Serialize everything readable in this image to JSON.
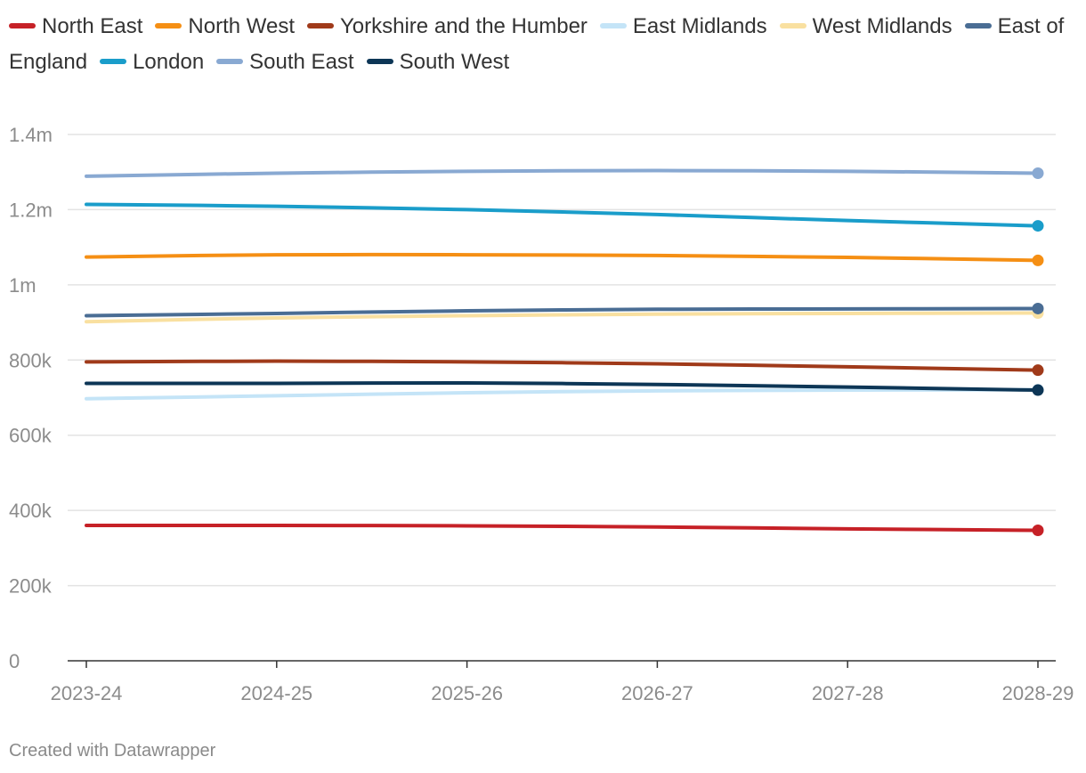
{
  "chart_data": {
    "type": "line",
    "title": "",
    "xlabel": "",
    "ylabel": "",
    "categories": [
      "2023-24",
      "2024-25",
      "2025-26",
      "2026-27",
      "2027-28",
      "2028-29"
    ],
    "ylim": [
      0,
      1400000
    ],
    "yticks": [
      0,
      200000,
      400000,
      600000,
      800000,
      1000000,
      1200000,
      1400000
    ],
    "ytick_labels": [
      "0",
      "200k",
      "400k",
      "600k",
      "800k",
      "1m",
      "1.2m",
      "1.4m"
    ],
    "grid": true,
    "legend_position": "top",
    "series": [
      {
        "name": "North East",
        "color": "#c62127",
        "values": [
          360000,
          360000,
          359000,
          356000,
          351000,
          347000
        ]
      },
      {
        "name": "North West",
        "color": "#f58f14",
        "values": [
          1074000,
          1080000,
          1080000,
          1078000,
          1073000,
          1065000
        ]
      },
      {
        "name": "Yorkshire and the Humber",
        "color": "#a03a1a",
        "values": [
          795000,
          797000,
          795000,
          790000,
          782000,
          773000
        ]
      },
      {
        "name": "East Midlands",
        "color": "#c4e4f7",
        "values": [
          697000,
          705000,
          713000,
          718000,
          720000,
          721000
        ]
      },
      {
        "name": "West Midlands",
        "color": "#f9e0a0",
        "values": [
          902000,
          912000,
          918000,
          922000,
          924000,
          925000
        ]
      },
      {
        "name": "East of England",
        "color": "#4a6d94",
        "values": [
          918000,
          924000,
          931000,
          935000,
          936000,
          937000
        ]
      },
      {
        "name": "London",
        "color": "#1a9dca",
        "values": [
          1214000,
          1209000,
          1200000,
          1187000,
          1171000,
          1157000
        ]
      },
      {
        "name": "South East",
        "color": "#89a9d2",
        "values": [
          1289000,
          1297000,
          1302000,
          1304000,
          1302000,
          1297000
        ]
      },
      {
        "name": "South West",
        "color": "#0d3656",
        "values": [
          738000,
          738000,
          739000,
          735000,
          728000,
          720000
        ]
      }
    ]
  },
  "credit": "Created with Datawrapper"
}
